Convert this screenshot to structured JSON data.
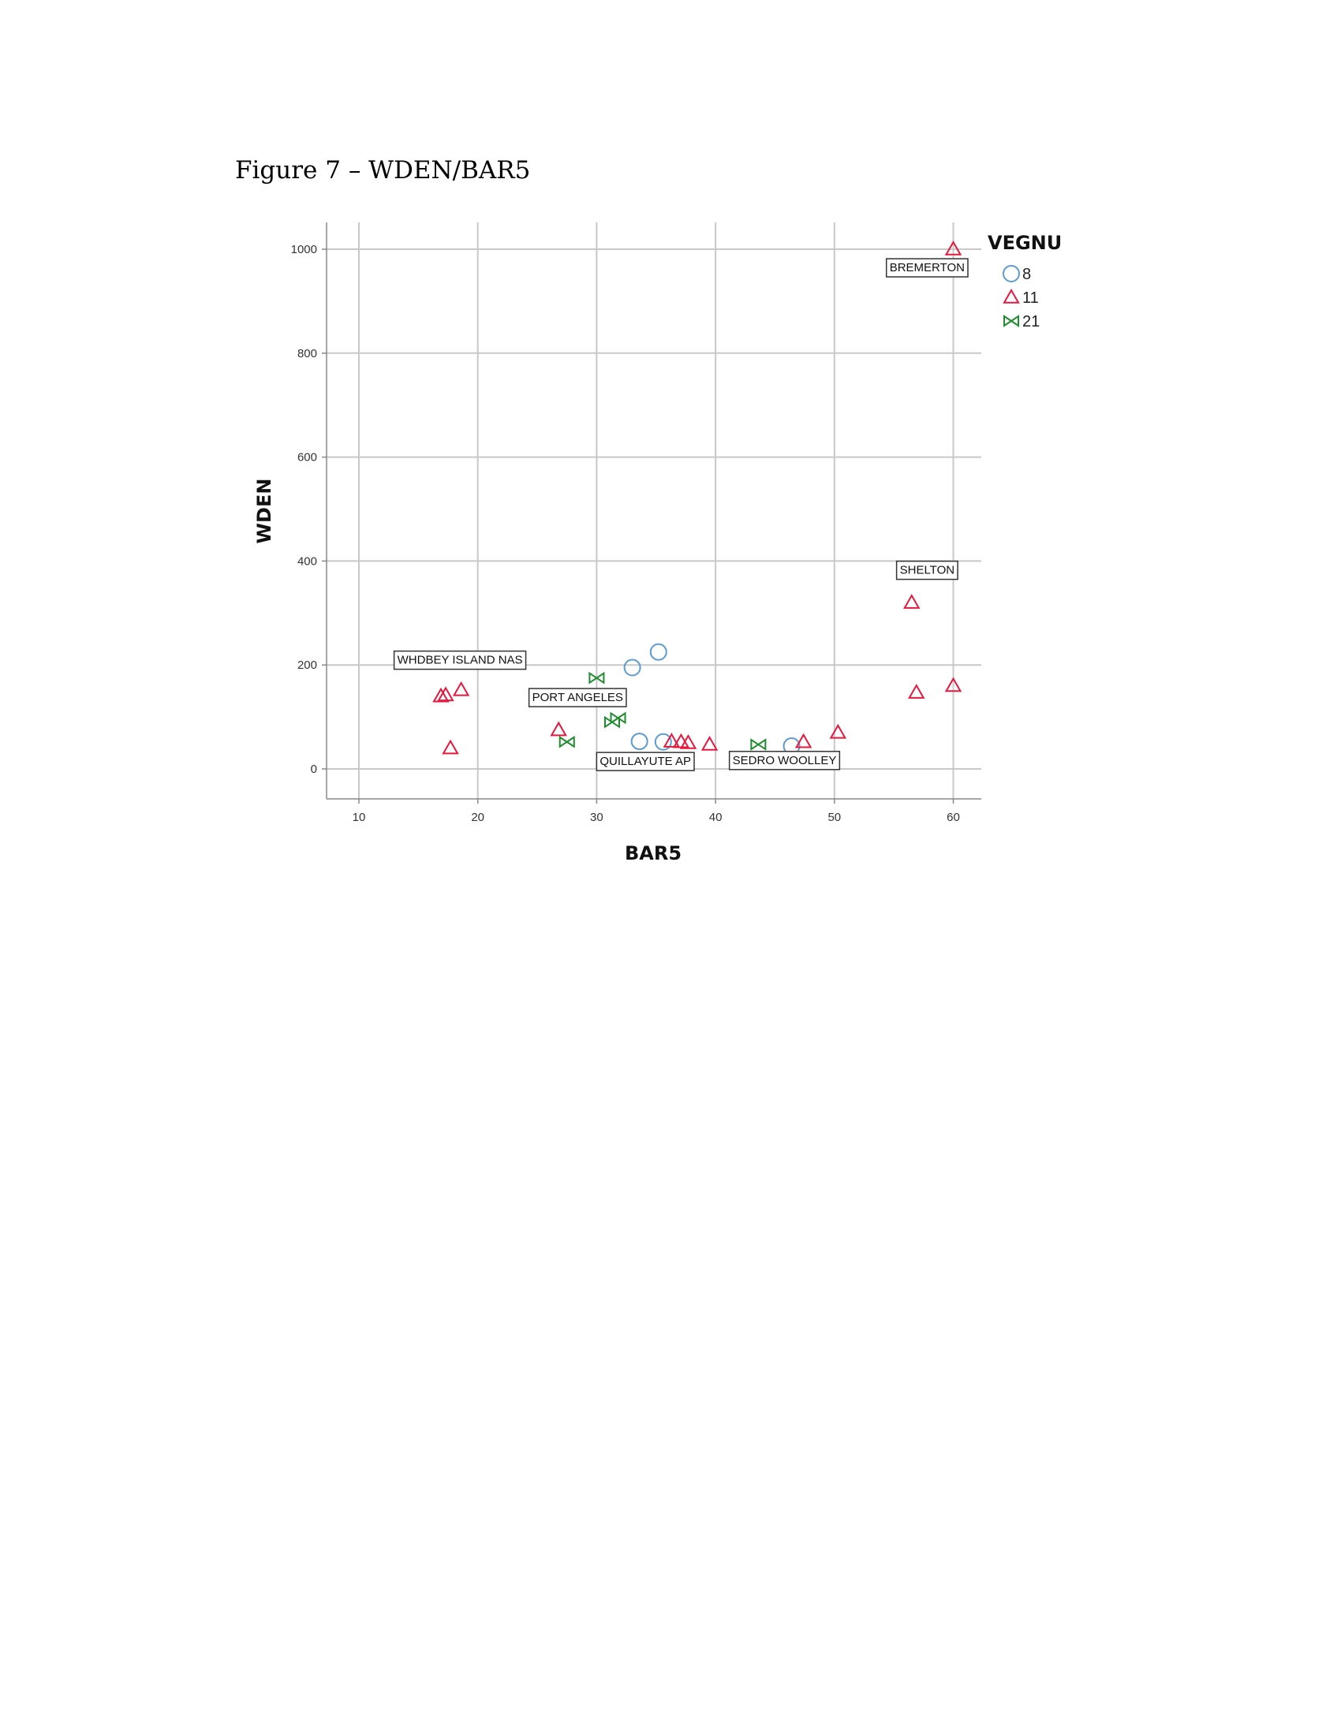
{
  "caption": "Figure 7 – WDEN/BAR5",
  "colors": {
    "8": "#5b9bd5",
    "11": "#e8173d",
    "21": "#1e8c2e",
    "grid": "#c8c8c8",
    "axis": "#888888"
  },
  "chart_data": {
    "type": "scatter",
    "title": "",
    "xlabel": "BAR5",
    "ylabel": "WDEN",
    "xlim": [
      7.3,
      62.8
    ],
    "ylim": [
      -55,
      1060
    ],
    "xticks": [
      10,
      20,
      30,
      40,
      50,
      60
    ],
    "yticks": [
      0,
      200,
      400,
      600,
      800,
      1000
    ],
    "grid": true,
    "legend": {
      "title": "VEGNU",
      "position": "top-right"
    },
    "series": [
      {
        "name": "8",
        "marker": "circle",
        "points": [
          [
            33,
            195
          ],
          [
            35.2,
            225
          ],
          [
            33.6,
            53
          ],
          [
            35.6,
            52
          ],
          [
            46.4,
            44
          ]
        ]
      },
      {
        "name": "11",
        "marker": "triangle",
        "points": [
          [
            60,
            1000
          ],
          [
            16.9,
            140
          ],
          [
            17.3,
            142
          ],
          [
            18.6,
            152
          ],
          [
            17.7,
            40
          ],
          [
            26.8,
            75
          ],
          [
            36.3,
            53
          ],
          [
            37.1,
            52
          ],
          [
            37.7,
            50
          ],
          [
            39.5,
            47
          ],
          [
            47.4,
            52
          ],
          [
            50.3,
            70
          ],
          [
            56.5,
            320
          ],
          [
            56.9,
            147
          ],
          [
            60,
            160
          ]
        ]
      },
      {
        "name": "21",
        "marker": "bowtie",
        "points": [
          [
            30,
            175
          ],
          [
            27.5,
            52
          ],
          [
            31.3,
            90
          ],
          [
            31.8,
            98
          ],
          [
            43.6,
            47
          ]
        ]
      }
    ],
    "annotations": [
      {
        "text": "BREMERTON",
        "x": 57.8,
        "y": 965
      },
      {
        "text": "SHELTON",
        "x": 57.8,
        "y": 383
      },
      {
        "text": "WHDBEY ISLAND NAS",
        "x": 18.5,
        "y": 210
      },
      {
        "text": "PORT ANGELES",
        "x": 28.4,
        "y": 138
      },
      {
        "text": "QUILLAYUTE AP",
        "x": 34.1,
        "y": 15
      },
      {
        "text": "SEDRO WOOLLEY",
        "x": 45.8,
        "y": 17
      }
    ]
  }
}
